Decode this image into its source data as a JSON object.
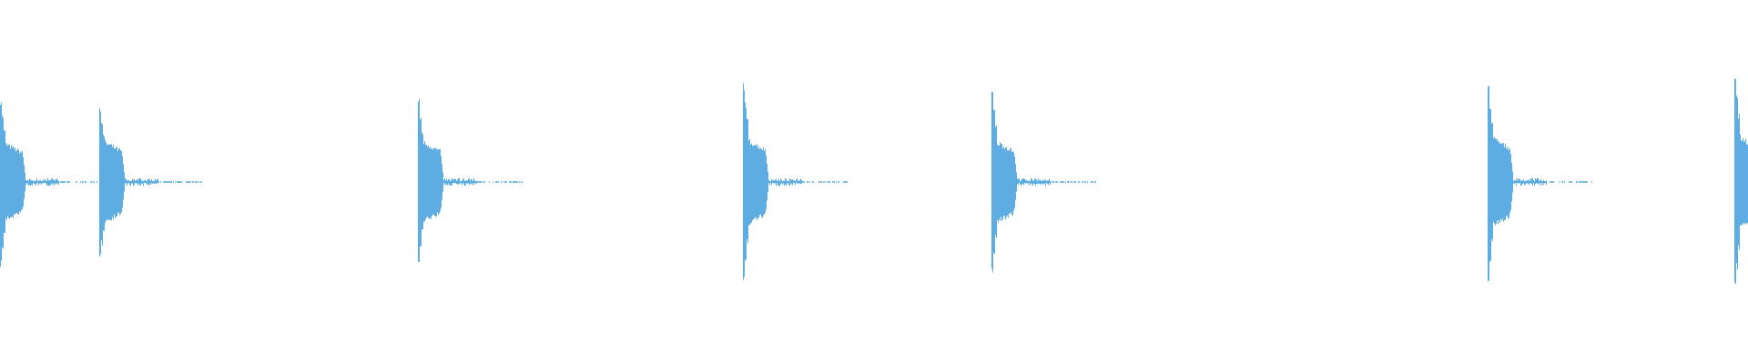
{
  "chart_data": {
    "type": "area",
    "title": "",
    "xlabel": "",
    "ylabel": "",
    "ylim": [
      -1,
      1
    ],
    "grid": false,
    "color": "#5dade2",
    "bursts": [
      {
        "onset_fraction_of_clip": 0.0,
        "peak_pos": 0.47,
        "peak_neg": -0.47,
        "body": 0.21
      },
      {
        "onset_fraction_of_clip": 0.057,
        "peak_pos": 0.43,
        "peak_neg": -0.44,
        "body": 0.22
      },
      {
        "onset_fraction_of_clip": 0.239,
        "peak_pos": 0.46,
        "peak_neg": -0.46,
        "body": 0.22
      },
      {
        "onset_fraction_of_clip": 0.425,
        "peak_pos": 0.56,
        "peak_neg": -0.56,
        "body": 0.23
      },
      {
        "onset_fraction_of_clip": 0.567,
        "peak_pos": 0.51,
        "peak_neg": -0.51,
        "body": 0.22
      },
      {
        "onset_fraction_of_clip": 0.851,
        "peak_pos": 0.55,
        "peak_neg": -0.55,
        "body": 0.24
      },
      {
        "onset_fraction_of_clip": 0.992,
        "peak_pos": 0.61,
        "peak_neg": -0.61,
        "body": 0.25
      }
    ]
  }
}
